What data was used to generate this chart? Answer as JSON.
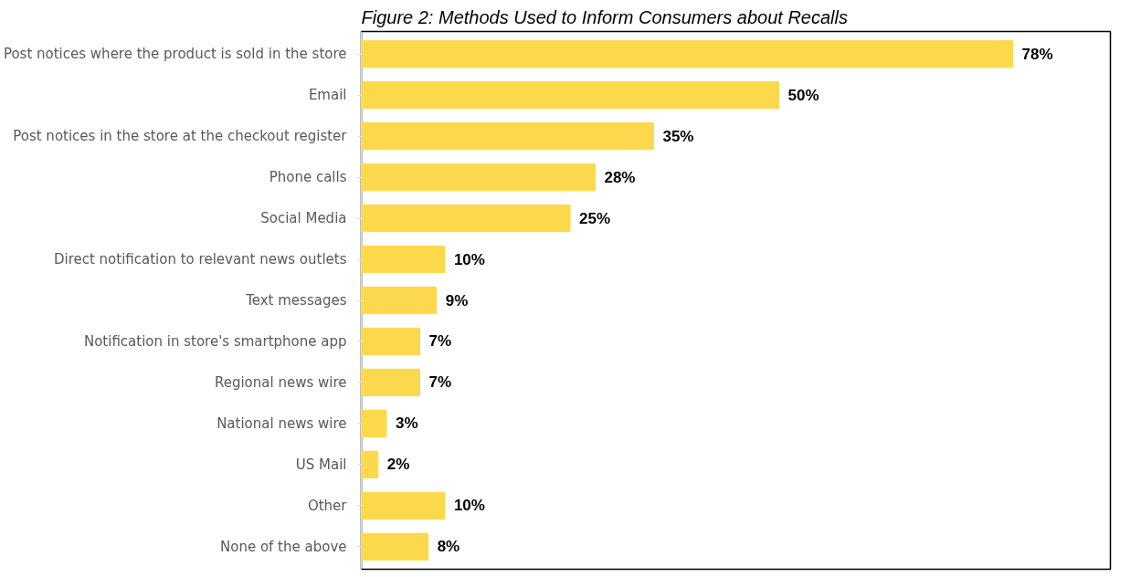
{
  "chart_data": {
    "type": "bar",
    "orientation": "horizontal",
    "title": "Figure 2: Methods Used to Inform Consumers about Recalls",
    "categories": [
      "Post notices where the product is sold in the store",
      "Email",
      "Post notices in the store at the checkout register",
      "Phone calls",
      "Social Media",
      "Direct notification to relevant news outlets",
      "Text messages",
      "Notification in store's smartphone app",
      "Regional news wire",
      "National news wire",
      "US Mail",
      "Other",
      "None of the above"
    ],
    "values": [
      78,
      50,
      35,
      28,
      25,
      10,
      9,
      7,
      7,
      3,
      2,
      10,
      8
    ],
    "value_labels": [
      "78%",
      "50%",
      "35%",
      "28%",
      "25%",
      "10%",
      "9%",
      "7%",
      "7%",
      "3%",
      "2%",
      "10%",
      "8%"
    ],
    "color": "#fcd94c",
    "grid": false
  }
}
